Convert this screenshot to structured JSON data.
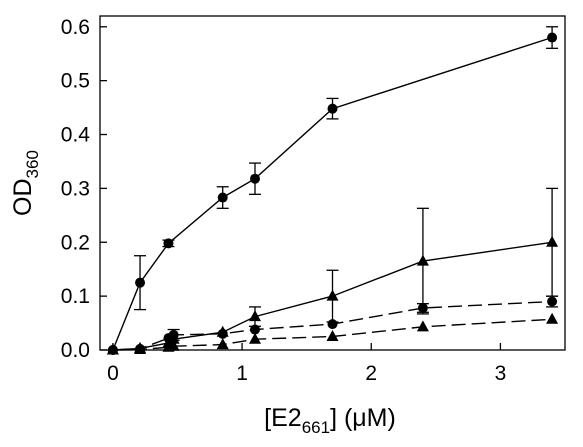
{
  "chart_data": {
    "type": "line",
    "title": "",
    "xlabel": {
      "main": "[E2",
      "sub": "661",
      "tail": "] (μM)"
    },
    "ylabel": {
      "main": "OD",
      "sub": "360"
    },
    "xlim": [
      -0.1,
      3.5
    ],
    "ylim": [
      0,
      0.62
    ],
    "xticks": [
      0,
      1,
      2,
      3
    ],
    "xtick_labels": [
      "0",
      "1",
      "2",
      "3"
    ],
    "yticks": [
      0,
      0.1,
      0.2,
      0.3,
      0.4,
      0.5,
      0.6
    ],
    "ytick_labels": [
      "0.0",
      "0.1",
      "0.2",
      "0.3",
      "0.4",
      "0.5",
      "0.6"
    ],
    "grid": false,
    "legend": "none",
    "series": [
      {
        "marker": "circle",
        "line": "solid",
        "points": [
          {
            "x": 0,
            "y": 0
          },
          {
            "x": 0.21,
            "y": 0.125,
            "err": 0.05
          },
          {
            "x": 0.43,
            "y": 0.198,
            "err": 0.006
          },
          {
            "x": 0.85,
            "y": 0.283,
            "err": 0.02
          },
          {
            "x": 1.1,
            "y": 0.318,
            "err": 0.029
          },
          {
            "x": 1.7,
            "y": 0.448,
            "err": 0.019
          },
          {
            "x": 3.4,
            "y": 0.58,
            "err": 0.02
          }
        ]
      },
      {
        "marker": "triangle",
        "line": "solid",
        "points": [
          {
            "x": 0,
            "y": 0
          },
          {
            "x": 0.21,
            "y": 0.003
          },
          {
            "x": 0.43,
            "y": 0.013
          },
          {
            "x": 0.47,
            "y": 0.02
          },
          {
            "x": 0.85,
            "y": 0.033
          },
          {
            "x": 1.1,
            "y": 0.062,
            "err": 0.018
          },
          {
            "x": 1.7,
            "y": 0.1,
            "err": 0.048
          },
          {
            "x": 2.4,
            "y": 0.165,
            "err": 0.098
          },
          {
            "x": 3.4,
            "y": 0.2,
            "err": 0.1
          }
        ]
      },
      {
        "marker": "circle",
        "line": "dashed",
        "points": [
          {
            "x": 0,
            "y": 0
          },
          {
            "x": 0.21,
            "y": 0.002
          },
          {
            "x": 0.43,
            "y": 0.022
          },
          {
            "x": 0.47,
            "y": 0.028,
            "err": 0.01
          },
          {
            "x": 0.85,
            "y": 0.03
          },
          {
            "x": 1.1,
            "y": 0.038
          },
          {
            "x": 1.7,
            "y": 0.048
          },
          {
            "x": 2.4,
            "y": 0.078,
            "err": 0.008
          },
          {
            "x": 3.4,
            "y": 0.09,
            "err": 0.01
          }
        ]
      },
      {
        "marker": "triangle",
        "line": "dashed",
        "points": [
          {
            "x": 0,
            "y": 0
          },
          {
            "x": 0.21,
            "y": 0.001
          },
          {
            "x": 0.43,
            "y": 0.005
          },
          {
            "x": 0.47,
            "y": 0.007
          },
          {
            "x": 0.85,
            "y": 0.01
          },
          {
            "x": 1.1,
            "y": 0.02
          },
          {
            "x": 1.7,
            "y": 0.025
          },
          {
            "x": 2.4,
            "y": 0.043
          },
          {
            "x": 3.4,
            "y": 0.057
          }
        ]
      }
    ]
  }
}
